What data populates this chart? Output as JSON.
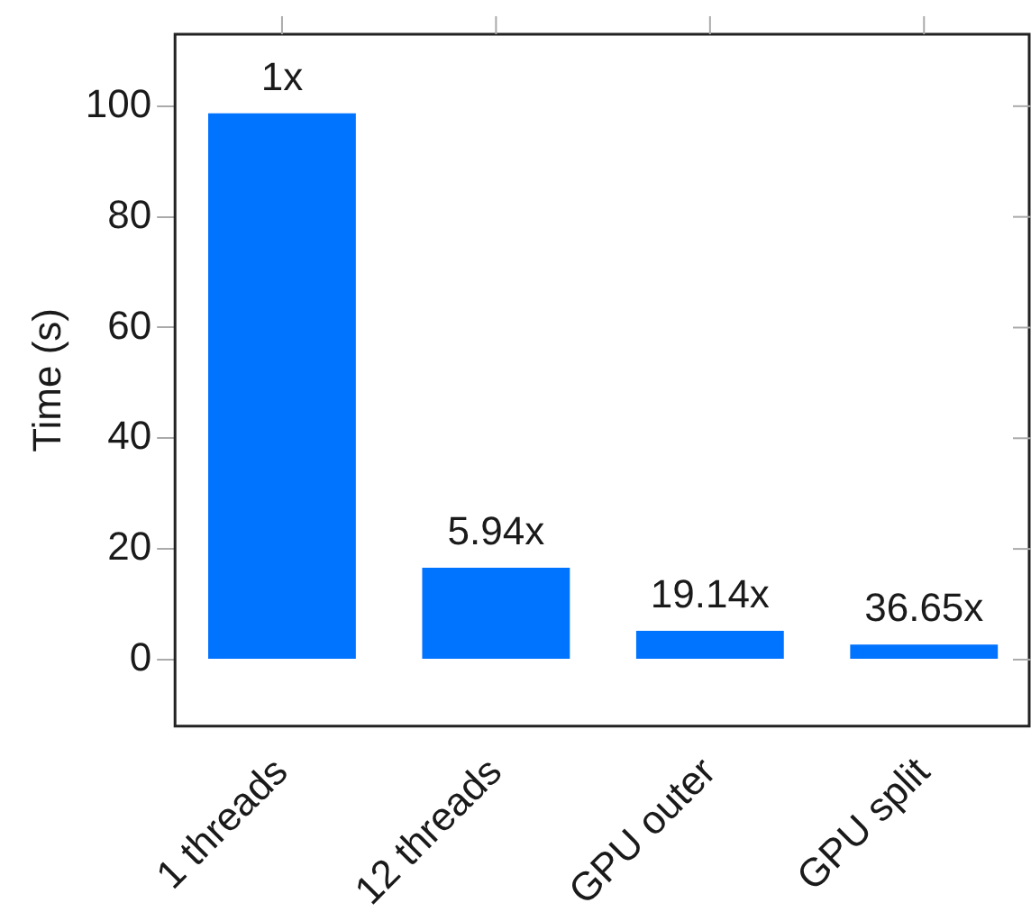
{
  "chart_data": {
    "type": "bar",
    "ylabel": "Time (s)",
    "categories": [
      "1 threads",
      "12 threads",
      "GPU outer",
      "GPU split"
    ],
    "values": [
      98.7,
      16.6,
      5.2,
      2.7
    ],
    "annotations": [
      {
        "text": "1x",
        "x": "1 threads",
        "y": 98.7
      },
      {
        "text": "5.94x",
        "x": "12 threads",
        "y": 16.6
      },
      {
        "text": "19.14x",
        "x": "GPU outer",
        "y": 5.2
      },
      {
        "text": "36.65x",
        "x": "GPU split",
        "y": 2.7
      }
    ],
    "color": "#0073ff",
    "ylim": [
      -12,
      113
    ],
    "yticks": [
      0,
      20,
      40,
      60,
      80,
      100
    ],
    "grid": false,
    "legend": false
  }
}
